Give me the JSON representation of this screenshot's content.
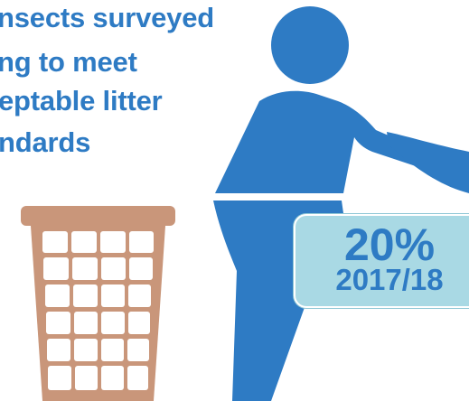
{
  "headline": {
    "lines": [
      "nsects surveyed",
      "ng to meet",
      "eptable litter",
      "ndards"
    ]
  },
  "stat": {
    "percent": "20%",
    "year": "2017/18"
  },
  "colors": {
    "primary_blue": "#2e7bc4",
    "stat_box_fill": "#a9d9e4",
    "bin_brown": "#c9967a",
    "background": "#ffffff"
  },
  "icons": {
    "figure": "person-throwing-litter-icon",
    "bin": "litter-bin-icon"
  }
}
